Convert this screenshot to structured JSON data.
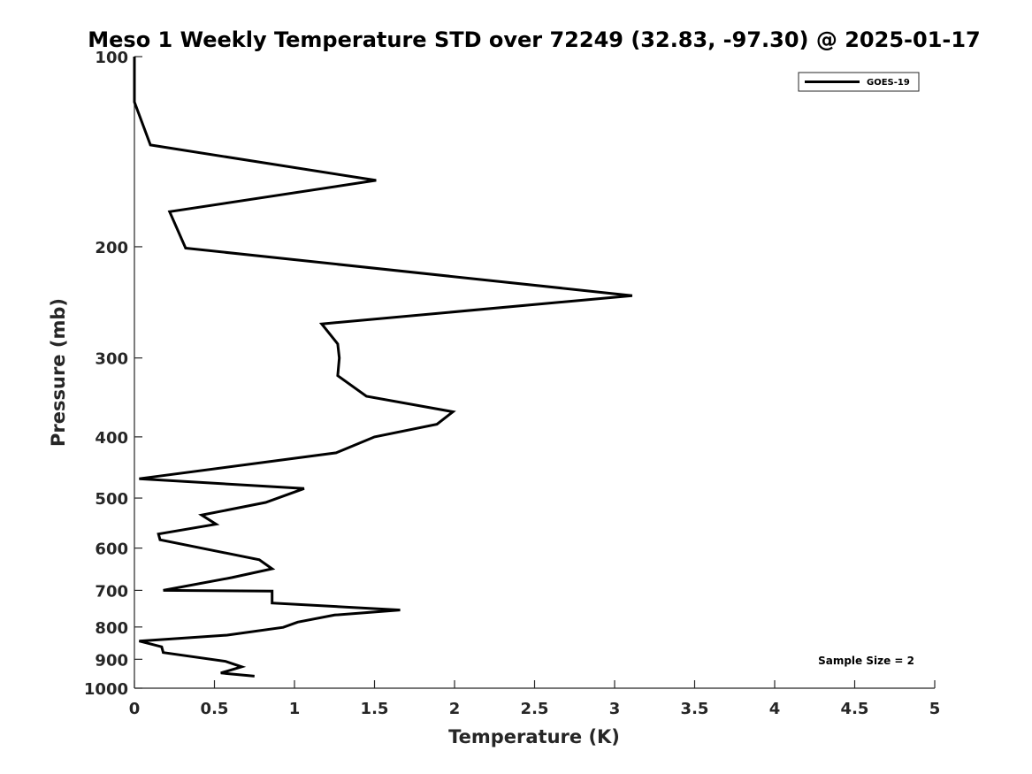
{
  "chart_data": {
    "type": "line",
    "title": "Meso 1 Weekly Temperature STD over 72249 (32.83, -97.30) @ 2025-01-17",
    "xlabel": "Temperature (K)",
    "ylabel": "Pressure (mb)",
    "xlim": [
      0,
      5
    ],
    "ylim": [
      1000,
      100
    ],
    "yscale": "log",
    "y_reversed": true,
    "x_ticks": [
      0,
      0.5,
      1,
      1.5,
      2,
      2.5,
      3,
      3.5,
      4,
      4.5,
      5
    ],
    "x_tick_labels": [
      "0",
      "0.5",
      "1",
      "1.5",
      "2",
      "2.5",
      "3",
      "3.5",
      "4",
      "4.5",
      "5"
    ],
    "y_ticks": [
      100,
      200,
      300,
      400,
      500,
      600,
      700,
      800,
      900,
      1000
    ],
    "y_tick_labels": [
      "100",
      "200",
      "300",
      "400",
      "500",
      "600",
      "700",
      "800",
      "900",
      "1000"
    ],
    "grid": false,
    "legend_position": "top-right",
    "annotation": "Sample Size = 2",
    "series": [
      {
        "name": "GOES-19",
        "color": "#000000",
        "x": [
          0.0,
          0.0,
          0.1,
          1.51,
          0.22,
          0.32,
          3.11,
          1.17,
          1.27,
          1.28,
          1.27,
          1.45,
          1.99,
          1.89,
          1.5,
          1.26,
          0.03,
          1.06,
          0.82,
          0.42,
          0.51,
          0.15,
          0.16,
          0.78,
          0.86,
          0.61,
          0.18,
          0.86,
          0.86,
          1.66,
          1.25,
          1.02,
          0.93,
          0.58,
          0.03,
          0.17,
          0.18,
          0.57,
          0.67,
          0.54,
          0.75
        ],
        "y": [
          100,
          118,
          138,
          157,
          176,
          201,
          239,
          265,
          285,
          300,
          320,
          345,
          365,
          382,
          400,
          424,
          466,
          483,
          508,
          532,
          550,
          570,
          582,
          626,
          647,
          668,
          700,
          702,
          733,
          752,
          766,
          786,
          801,
          824,
          842,
          860,
          878,
          907,
          925,
          946,
          957
        ]
      }
    ]
  }
}
